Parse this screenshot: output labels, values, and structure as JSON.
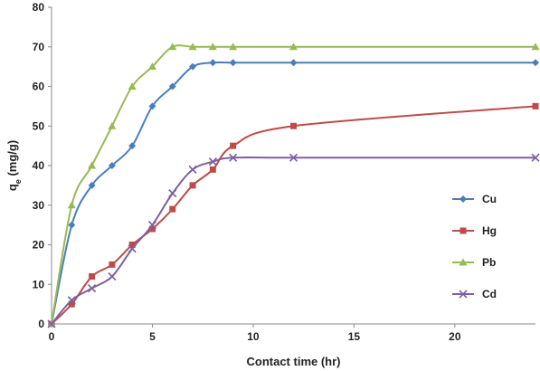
{
  "chart_data": {
    "type": "line",
    "xlabel": "Contact time (hr)",
    "ylabel_main": "q",
    "ylabel_sub": "e",
    "ylabel_unit": " (mg/g)",
    "xlim": [
      0,
      24
    ],
    "ylim": [
      0,
      80
    ],
    "x_ticks": [
      0,
      5,
      10,
      15,
      20
    ],
    "y_ticks": [
      0,
      10,
      20,
      30,
      40,
      50,
      60,
      70,
      80
    ],
    "legend_position": "right",
    "series": [
      {
        "name": "Cu",
        "color": "#4a7ebb",
        "marker": "diamond",
        "x": [
          0,
          1,
          2,
          3,
          4,
          5,
          6,
          7,
          8,
          9,
          12,
          24
        ],
        "y": [
          0,
          25,
          35,
          40,
          45,
          55,
          60,
          65,
          66,
          66,
          66,
          66
        ]
      },
      {
        "name": "Hg",
        "color": "#be4b48",
        "marker": "square",
        "x": [
          0,
          1,
          2,
          3,
          4,
          5,
          6,
          7,
          8,
          9,
          12,
          24
        ],
        "y": [
          0,
          5,
          12,
          15,
          20,
          24,
          29,
          35,
          39,
          45,
          50,
          55
        ]
      },
      {
        "name": "Pb",
        "color": "#98b954",
        "marker": "triangle",
        "x": [
          0,
          1,
          2,
          3,
          4,
          5,
          6,
          7,
          8,
          9,
          12,
          24
        ],
        "y": [
          0,
          30,
          40,
          50,
          60,
          65,
          70,
          70,
          70,
          70,
          70,
          70
        ]
      },
      {
        "name": "Cd",
        "color": "#7d60a0",
        "marker": "x",
        "x": [
          0,
          1,
          2,
          3,
          4,
          5,
          6,
          7,
          8,
          9,
          12,
          24
        ],
        "y": [
          0,
          6,
          9,
          12,
          19,
          25,
          33,
          39,
          41,
          42,
          42,
          42
        ]
      }
    ]
  }
}
